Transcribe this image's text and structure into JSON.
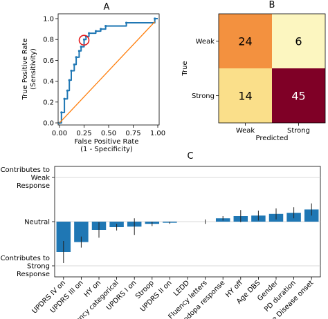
{
  "chart_data": [
    {
      "panel": "A",
      "type": "line",
      "title": "A",
      "xlabel": "False Positive Rate",
      "xlabel2": "(1 - Specificity)",
      "ylabel": "True Positive Rate",
      "ylabel2": "(Sensitivity)",
      "xlim": [
        0,
        1
      ],
      "ylim": [
        0,
        1
      ],
      "xticks": [
        "0.00",
        "0.25",
        "0.50",
        "0.75",
        "1.00"
      ],
      "yticks": [
        "0.0",
        "0.2",
        "0.4",
        "0.6",
        "0.8",
        "1.0"
      ],
      "series": [
        {
          "kind": "roc",
          "color": "#1f77b4",
          "x": [
            0.0,
            0.02,
            0.02,
            0.05,
            0.05,
            0.08,
            0.08,
            0.1,
            0.1,
            0.12,
            0.12,
            0.15,
            0.15,
            0.17,
            0.17,
            0.2,
            0.2,
            0.22,
            0.22,
            0.25,
            0.25,
            0.27,
            0.27,
            0.3,
            0.3,
            0.37,
            0.37,
            0.42,
            0.42,
            0.47,
            0.47,
            0.68,
            0.68,
            0.97,
            0.97,
            1.0
          ],
          "y": [
            0.0,
            0.0,
            0.1,
            0.1,
            0.23,
            0.23,
            0.31,
            0.31,
            0.41,
            0.41,
            0.5,
            0.5,
            0.56,
            0.56,
            0.63,
            0.63,
            0.69,
            0.69,
            0.73,
            0.73,
            0.8,
            0.8,
            0.83,
            0.83,
            0.86,
            0.86,
            0.88,
            0.88,
            0.9,
            0.9,
            0.93,
            0.93,
            0.96,
            0.96,
            1.0,
            1.0
          ]
        },
        {
          "kind": "chance",
          "color": "#ff7f0e",
          "x": [
            0.0,
            0.97
          ],
          "y": [
            0.0,
            0.97
          ]
        }
      ],
      "highlight": {
        "x": 0.25,
        "y": 0.78,
        "color": "#e31a1c"
      }
    },
    {
      "panel": "B",
      "type": "heatmap",
      "title": "B",
      "xlabel": "Predicted",
      "ylabel": "True",
      "x_categories": [
        "Weak",
        "Strong"
      ],
      "y_categories": [
        "Weak",
        "Strong"
      ],
      "values": [
        [
          24,
          6
        ],
        [
          14,
          45
        ]
      ],
      "colors": [
        [
          "#f3913f",
          "#fcf6c0"
        ],
        [
          "#fadf8a",
          "#7f0026"
        ]
      ]
    },
    {
      "panel": "C",
      "type": "bar",
      "title": "C",
      "bar_color": "#1f77b4",
      "ylim": [
        -1,
        1
      ],
      "yticks": [
        {
          "value": 0.8,
          "lines": [
            "Contributes to",
            "Weak",
            "Response"
          ]
        },
        {
          "value": 0.0,
          "lines": [
            "Neutral"
          ]
        },
        {
          "value": -0.8,
          "lines": [
            "Contributes to",
            "Strong",
            "Response"
          ]
        }
      ],
      "categories": [
        "UPDRS IV on",
        "UPDRS III on",
        "HY on",
        "Fluency categorical",
        "UPDRS I on",
        "Stroop",
        "UPDRS II on",
        "LEDD",
        "Fluency letters",
        "Levodopa response",
        "HY off",
        "Age DBS",
        "Gender",
        "PD duration",
        "Age Disease onset"
      ],
      "values": [
        -0.55,
        -0.37,
        -0.15,
        -0.1,
        -0.09,
        -0.04,
        -0.02,
        0.0,
        0.0,
        0.06,
        0.1,
        0.11,
        0.14,
        0.16,
        0.22
      ],
      "errors": [
        0.2,
        0.1,
        0.14,
        0.06,
        0.15,
        0.04,
        0.02,
        0.0,
        0.04,
        0.04,
        0.11,
        0.09,
        0.1,
        0.1,
        0.11
      ]
    }
  ]
}
